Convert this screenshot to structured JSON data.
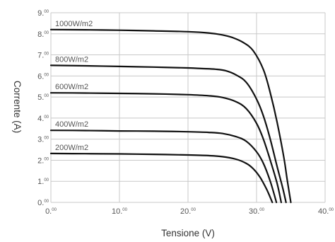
{
  "chart_data": {
    "type": "line",
    "xlabel": "Tensione (V)",
    "ylabel": "Corrente (A)",
    "xlim": [
      0,
      40
    ],
    "ylim": [
      0,
      9
    ],
    "grid": true,
    "x_ticks": [
      {
        "main": "0.",
        "sup": "00"
      },
      {
        "main": "10.",
        "sup": "00"
      },
      {
        "main": "20.",
        "sup": "00"
      },
      {
        "main": "30.",
        "sup": "00"
      },
      {
        "main": "40.",
        "sup": "00"
      }
    ],
    "y_ticks": [
      {
        "main": "0.",
        "sup": "00"
      },
      {
        "main": "1.",
        "sup": "00"
      },
      {
        "main": "2.",
        "sup": "00"
      },
      {
        "main": "3.",
        "sup": "00"
      },
      {
        "main": "4.",
        "sup": "00"
      },
      {
        "main": "5.",
        "sup": "00"
      },
      {
        "main": "6.",
        "sup": "00"
      },
      {
        "main": "7.",
        "sup": "00"
      },
      {
        "main": "8.",
        "sup": "00"
      },
      {
        "main": "9.",
        "sup": "00"
      }
    ],
    "series": [
      {
        "name": "1000W/m2",
        "color": "#111111",
        "x": [
          0,
          5,
          10,
          15,
          20,
          23,
          25,
          26.5,
          28,
          29.5,
          31,
          32,
          33,
          34,
          34.5,
          35
        ],
        "y": [
          8.2,
          8.19,
          8.17,
          8.14,
          8.1,
          8.04,
          7.95,
          7.82,
          7.6,
          7.2,
          6.3,
          5.2,
          3.8,
          2.1,
          1.0,
          0
        ]
      },
      {
        "name": "800W/m2",
        "color": "#111111",
        "x": [
          0,
          5,
          10,
          15,
          20,
          22,
          24,
          25.5,
          27,
          28.5,
          30,
          31,
          32,
          33,
          33.8,
          34.3
        ],
        "y": [
          6.5,
          6.48,
          6.45,
          6.42,
          6.38,
          6.35,
          6.32,
          6.25,
          6.05,
          5.7,
          4.9,
          4.1,
          3.0,
          1.7,
          0.7,
          0
        ]
      },
      {
        "name": "600W/m2",
        "color": "#111111",
        "x": [
          0,
          5,
          10,
          15,
          20,
          23,
          25,
          27,
          28.5,
          30,
          31,
          32,
          33,
          33.6
        ],
        "y": [
          5.2,
          5.19,
          5.17,
          5.15,
          5.11,
          5.06,
          4.98,
          4.78,
          4.45,
          3.75,
          3.0,
          2.0,
          0.9,
          0
        ]
      },
      {
        "name": "400W/m2",
        "color": "#111111",
        "x": [
          0,
          5,
          10,
          15,
          20,
          23,
          25,
          27,
          28.5,
          30,
          31,
          32,
          32.9
        ],
        "y": [
          3.42,
          3.41,
          3.39,
          3.38,
          3.35,
          3.32,
          3.27,
          3.12,
          2.9,
          2.4,
          1.85,
          1.0,
          0
        ]
      },
      {
        "name": "200W/m2",
        "color": "#111111",
        "x": [
          0,
          5,
          10,
          15,
          20,
          23,
          25,
          27,
          28.5,
          29.5,
          30.5,
          31.5,
          32.3
        ],
        "y": [
          2.32,
          2.31,
          2.3,
          2.28,
          2.25,
          2.22,
          2.17,
          2.05,
          1.85,
          1.6,
          1.2,
          0.6,
          0
        ]
      }
    ]
  }
}
